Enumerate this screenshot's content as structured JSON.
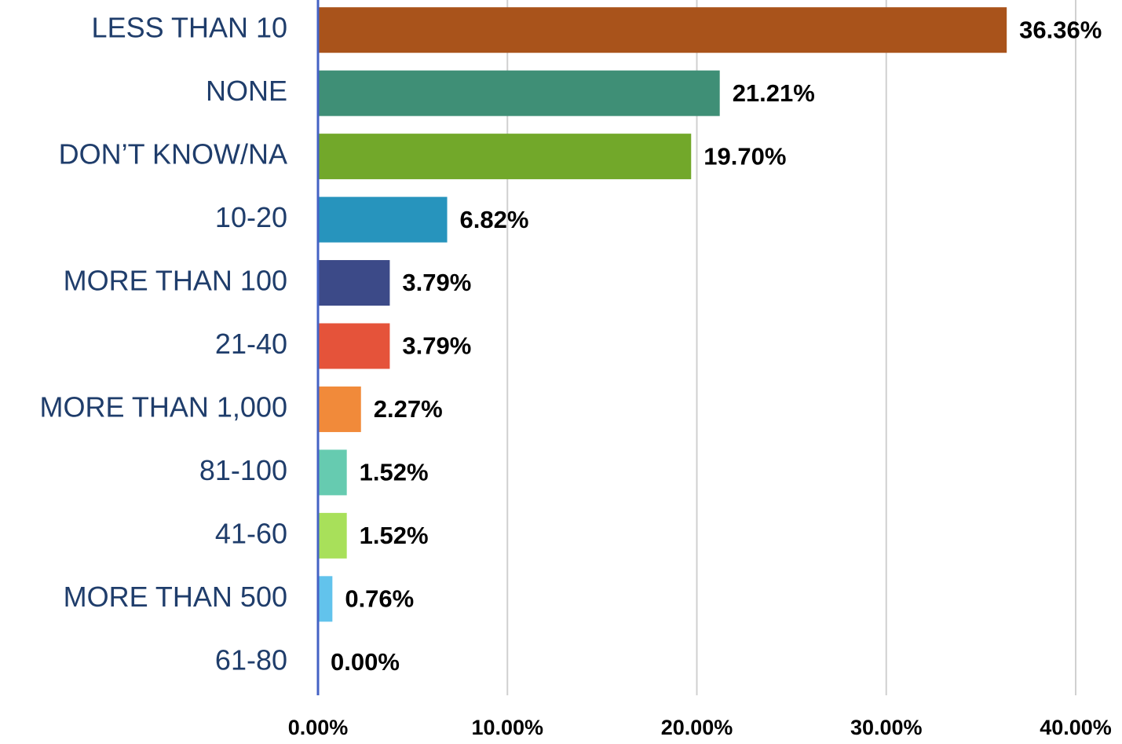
{
  "chart_data": {
    "type": "barh",
    "categories": [
      "LESS THAN 10",
      "NONE",
      "DON’T KNOW/NA",
      "10-20",
      "MORE THAN 100",
      "21-40",
      "MORE THAN 1,000",
      "81-100",
      "41-60",
      "MORE THAN 500",
      "61-80"
    ],
    "values": [
      36.36,
      21.21,
      19.7,
      6.82,
      3.79,
      3.79,
      2.27,
      1.52,
      1.52,
      0.76,
      0.0
    ],
    "value_labels": [
      "36.36%",
      "21.21%",
      "19.70%",
      "6.82%",
      "3.79%",
      "3.79%",
      "2.27%",
      "1.52%",
      "1.52%",
      "0.76%",
      "0.00%"
    ],
    "colors": [
      "#a9531b",
      "#3f8f76",
      "#72a82a",
      "#2794bd",
      "#3c4a88",
      "#e5533a",
      "#f18a3a",
      "#66cbb0",
      "#a8e05a",
      "#62c3ec",
      "#2794bd"
    ],
    "xlim": [
      0,
      40
    ],
    "xticks": [
      {
        "value": 0,
        "label": "0.00%"
      },
      {
        "value": 10,
        "label": "10.00%"
      },
      {
        "value": 20,
        "label": "20.00%"
      },
      {
        "value": 30,
        "label": "30.00%"
      },
      {
        "value": 40,
        "label": "40.00%"
      }
    ],
    "grid": true
  }
}
